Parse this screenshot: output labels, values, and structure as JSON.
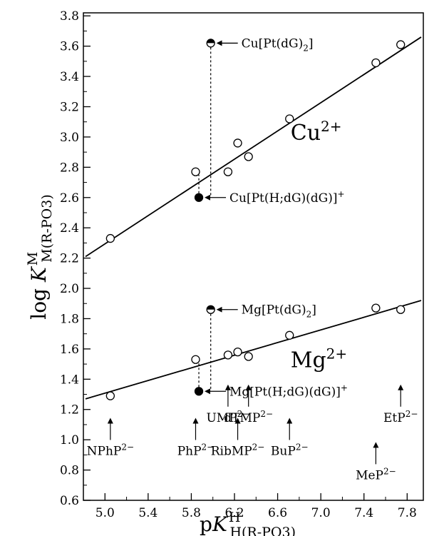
{
  "chart_data": {
    "type": "scatter",
    "xlabel": "pK H H(R-PO3)",
    "ylabel": "log K M M(R-PO3)",
    "xlim": [
      4.8,
      7.95
    ],
    "ylim": [
      0.6,
      3.82
    ],
    "x_ticks": [
      5.0,
      5.4,
      5.8,
      6.2,
      6.6,
      7.0,
      7.4,
      7.8
    ],
    "x_tick_labels": [
      "5.0",
      "5.4",
      "5.8",
      "6.2",
      "6.6",
      "7.0",
      "7.4",
      "7.8"
    ],
    "y_ticks": [
      0.6,
      0.8,
      1.0,
      1.2,
      1.4,
      1.6,
      1.8,
      2.0,
      2.2,
      2.4,
      2.6,
      2.8,
      3.0,
      3.2,
      3.4,
      3.6,
      3.8
    ],
    "y_tick_labels": [
      "0.6",
      "0.8",
      "1.0",
      "1.2",
      "1.4",
      "1.6",
      "1.8",
      "2.0",
      "2.2",
      "2.4",
      "2.6",
      "2.8",
      "3.0",
      "3.2",
      "3.4",
      "3.6",
      "3.8"
    ],
    "grid": false,
    "series": [
      {
        "name": "Cu2+",
        "label_base": "Cu",
        "label_sup": "2+",
        "points": [
          {
            "x": 5.05,
            "y": 2.33
          },
          {
            "x": 5.84,
            "y": 2.77
          },
          {
            "x": 6.14,
            "y": 2.77
          },
          {
            "x": 6.23,
            "y": 2.96
          },
          {
            "x": 6.33,
            "y": 2.87
          },
          {
            "x": 6.71,
            "y": 3.12
          },
          {
            "x": 7.51,
            "y": 3.49
          },
          {
            "x": 7.74,
            "y": 3.61
          }
        ],
        "fit_line": {
          "x": [
            4.82,
            7.93
          ],
          "y": [
            2.21,
            3.66
          ]
        }
      },
      {
        "name": "Mg2+",
        "label_base": "Mg",
        "label_sup": "2+",
        "points": [
          {
            "x": 5.05,
            "y": 1.29
          },
          {
            "x": 5.84,
            "y": 1.53
          },
          {
            "x": 6.14,
            "y": 1.56
          },
          {
            "x": 6.23,
            "y": 1.58
          },
          {
            "x": 6.33,
            "y": 1.55
          },
          {
            "x": 6.71,
            "y": 1.69
          },
          {
            "x": 7.51,
            "y": 1.87
          },
          {
            "x": 7.74,
            "y": 1.86
          }
        ],
        "fit_line": {
          "x": [
            4.82,
            7.93
          ],
          "y": [
            1.27,
            1.92
          ]
        }
      }
    ],
    "special_points": [
      {
        "label": "Cu[Pt(dG)2]",
        "x": 5.98,
        "y": 3.62,
        "marker": "half-filled"
      },
      {
        "label": "Cu[Pt(H;dG)(dG)]+",
        "x": 5.87,
        "y": 2.6,
        "marker": "filled"
      },
      {
        "label": "Mg[Pt(dG)2]",
        "x": 5.98,
        "y": 1.86,
        "marker": "half-filled"
      },
      {
        "label": "Mg[Pt(H;dG)(dG)]+",
        "x": 5.87,
        "y": 1.32,
        "marker": "filled"
      }
    ],
    "dashed_connectors": [
      {
        "x": 5.98,
        "y": [
          3.62,
          2.6
        ]
      },
      {
        "x": 5.87,
        "y": [
          2.6,
          2.75
        ]
      },
      {
        "x": 5.98,
        "y": [
          1.86,
          1.32
        ]
      },
      {
        "x": 5.87,
        "y": [
          1.32,
          1.52
        ]
      }
    ],
    "ligand_labels": [
      {
        "label": "NPhP2-",
        "base": "NPhP",
        "sup": "2−",
        "x": 5.05,
        "arrow_tip_y": 1.14
      },
      {
        "label": "PhP2-",
        "base": "PhP",
        "sup": "2−",
        "x": 5.84,
        "arrow_tip_y": 1.14
      },
      {
        "label": "UMP2-",
        "base": "UMP",
        "sup": "2−",
        "x": 6.14,
        "arrow_tip_y": 1.36
      },
      {
        "label": "RibMP2-",
        "base": "RibMP",
        "sup": "2−",
        "x": 6.23,
        "arrow_tip_y": 1.14
      },
      {
        "label": "dTMP2-",
        "base": "dTMP",
        "sup": "2−",
        "x": 6.33,
        "arrow_tip_y": 1.36
      },
      {
        "label": "BuP2-",
        "base": "BuP",
        "sup": "2−",
        "x": 6.71,
        "arrow_tip_y": 1.14
      },
      {
        "label": "MeP2-",
        "base": "MeP",
        "sup": "2−",
        "x": 7.51,
        "arrow_tip_y": 0.98
      },
      {
        "label": "EtP2-",
        "base": "EtP",
        "sup": "2−",
        "x": 7.74,
        "arrow_tip_y": 1.36
      }
    ]
  },
  "text": {
    "ylabel": {
      "pre": "log ",
      "K": "K",
      "sup": "M",
      "sub": "M(R-PO3)"
    },
    "xlabel": {
      "p": "p",
      "K": "K",
      "sup": "H",
      "sub": "H(R-PO3)"
    },
    "ann_cu_bis": {
      "base": "Cu[Pt(dG)",
      "sub": "2",
      "tail": "]"
    },
    "ann_cu_h": {
      "base": "Cu[Pt(H;dG)(dG)]",
      "sup": "+"
    },
    "ann_mg_bis": {
      "base": "Mg[Pt(dG)",
      "sub": "2",
      "tail": "]"
    },
    "ann_mg_h": {
      "base": "Mg[Pt(H;dG)(dG)]",
      "sup": "+"
    }
  }
}
